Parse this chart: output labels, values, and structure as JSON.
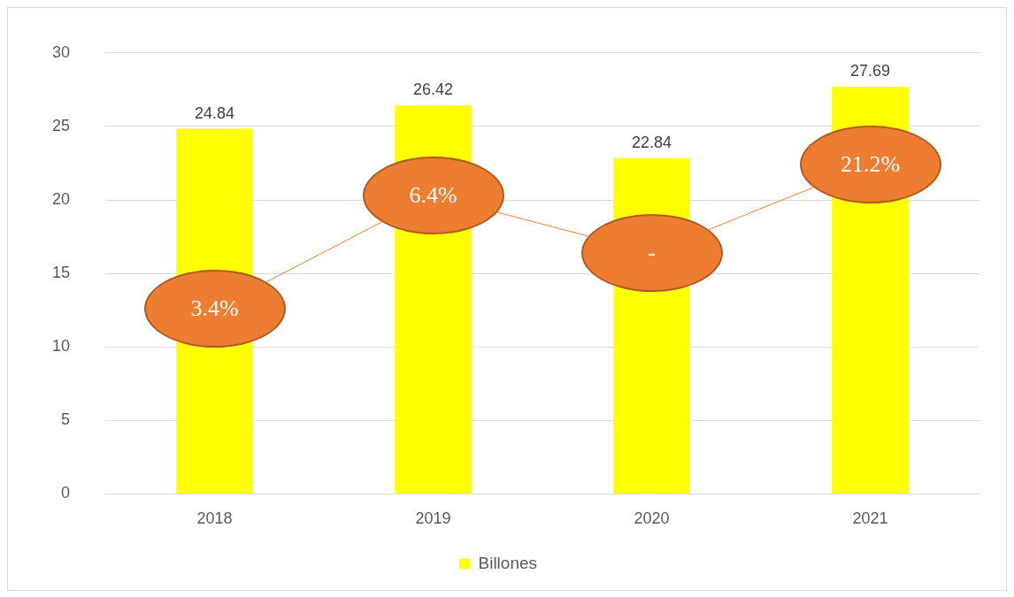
{
  "chart_data": {
    "type": "bar",
    "categories": [
      "2018",
      "2019",
      "2020",
      "2021"
    ],
    "series": [
      {
        "name": "Billones",
        "color": "#ffff00",
        "values": [
          24.84,
          26.42,
          22.84,
          27.69
        ],
        "value_labels": [
          "24.84",
          "26.42",
          "22.84",
          "27.69"
        ]
      }
    ],
    "annotations": [
      "3.4%",
      "6.4%",
      "-",
      "21.2%"
    ],
    "ylim": [
      0,
      30
    ],
    "yticks": [
      0,
      5,
      10,
      15,
      20,
      25,
      30
    ],
    "grid": "y",
    "legend": "bottom"
  }
}
